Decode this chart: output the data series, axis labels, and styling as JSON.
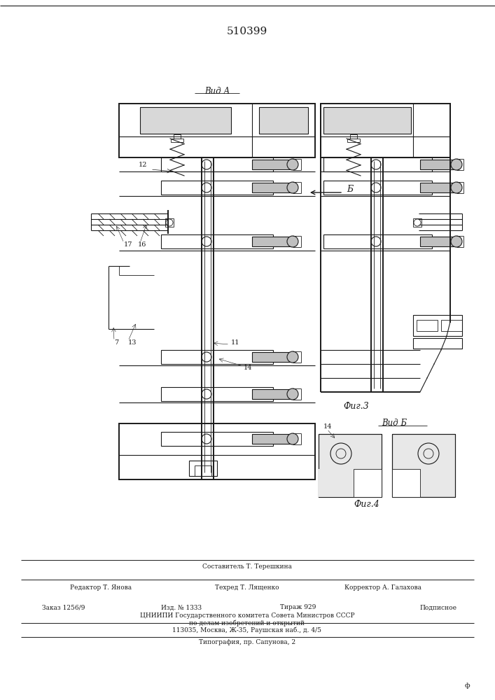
{
  "patent_number": "510399",
  "view_a_label": "Вид А",
  "fig3_label": "Фиг.3",
  "view_b_label": "Вид Б",
  "fig4_label": "Фиг.4",
  "arrow_label": "Б",
  "footer": {
    "compiler": "Составитель Т. Терешкина",
    "editor": "Редактор Т. Янова",
    "techred": "Техред Т. Лященко",
    "corrector": "Корректор А. Галахова",
    "order": "Заказ 1256/9",
    "edition": "Изд. № 1333",
    "circulation": "Тираж 929",
    "subscription": "Подписное",
    "org_line1": "ЦНИИПИ Государственного комитета Совета Министров СССР",
    "org_line2": "по делам изобретений и открытий",
    "org_line3": "113035, Москва, Ж-35, Раушская наб., д. 4/5",
    "print_house": "Типография, пр. Сапунова, 2"
  },
  "bg_color": "#ffffff",
  "line_color": "#1a1a1a"
}
